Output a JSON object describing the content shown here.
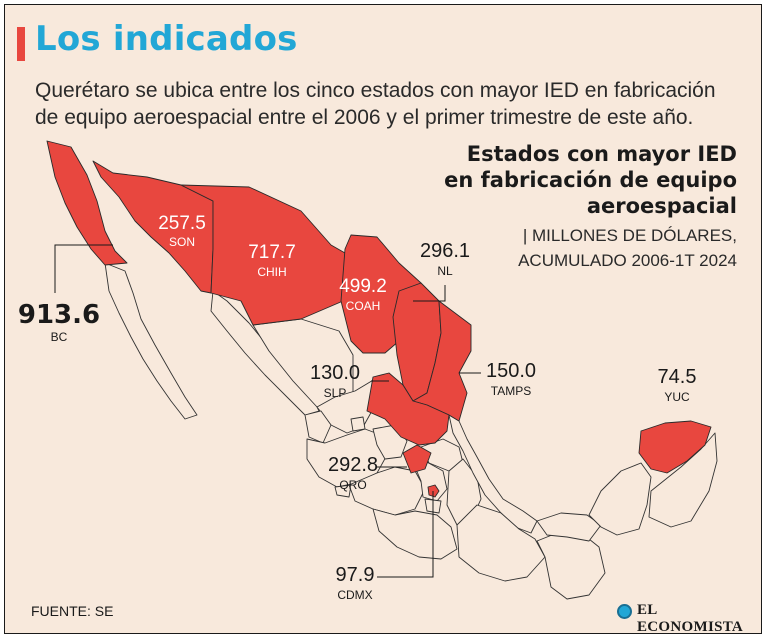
{
  "header": {
    "title": "Los indicados",
    "subtitle": "Querétaro se ubica entre los cinco estados con mayor IED en fabricación de equipo aeroespacial entre el 2006 y el primer trimestre de este año."
  },
  "chart_title": "Estados con mayor IED en fabricación de equipo aeroespacial",
  "units": {
    "line1": "| MILLONES DE DÓLARES,",
    "line2": "ACUMULADO 2006-1T 2024"
  },
  "chart_data": {
    "type": "choropleth",
    "unit": "MILLONES DE DÓLARES",
    "period": "ACUMULADO 2006-1T 2024",
    "regions": [
      {
        "code": "BC",
        "value": 913.6
      },
      {
        "code": "SON",
        "value": 257.5
      },
      {
        "code": "CHIH",
        "value": 717.7
      },
      {
        "code": "COAH",
        "value": 499.2
      },
      {
        "code": "NL",
        "value": 296.1
      },
      {
        "code": "TAMPS",
        "value": 150.0
      },
      {
        "code": "SLP",
        "value": 130.0
      },
      {
        "code": "QRO",
        "value": 292.8
      },
      {
        "code": "CDMX",
        "value": 97.9
      },
      {
        "code": "YUC",
        "value": 74.5
      }
    ]
  },
  "labels": {
    "bc": {
      "value": "913.6",
      "code": "BC"
    },
    "son": {
      "value": "257.5",
      "code": "SON"
    },
    "chih": {
      "value": "717.7",
      "code": "CHIH"
    },
    "coah": {
      "value": "499.2",
      "code": "COAH"
    },
    "nl": {
      "value": "296.1",
      "code": "NL"
    },
    "tamps": {
      "value": "150.0",
      "code": "TAMPS"
    },
    "slp": {
      "value": "130.0",
      "code": "SLP"
    },
    "qro": {
      "value": "292.8",
      "code": "QRO"
    },
    "cdmx": {
      "value": "97.9",
      "code": "CDMX"
    },
    "yuc": {
      "value": "74.5",
      "code": "YUC"
    }
  },
  "colors": {
    "highlight": "#e8473f",
    "background": "#f8e9dc",
    "title": "#22a7d6"
  },
  "footer": {
    "source": "FUENTE: SE",
    "logo": "EL ECONOMISTA"
  }
}
